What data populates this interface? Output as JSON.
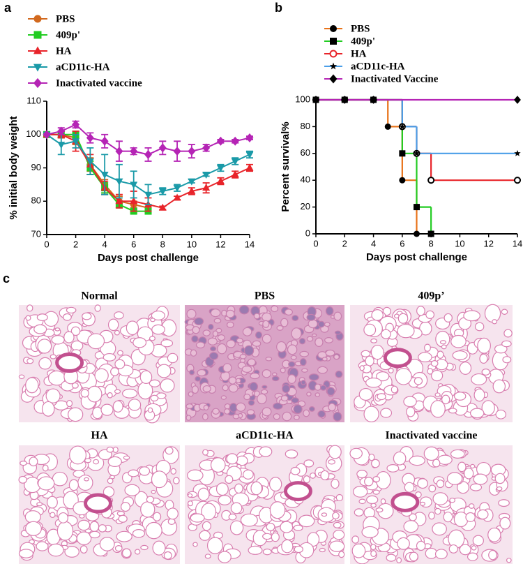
{
  "chart_data": [
    {
      "panel_label": "a",
      "type": "line",
      "xlabel": "Days post challenge",
      "ylabel": "% initial body weight",
      "x": [
        0,
        1,
        2,
        3,
        4,
        5,
        6,
        7,
        8,
        9,
        10,
        11,
        12,
        13,
        14
      ],
      "xlim": [
        0,
        14
      ],
      "xticks": [
        0,
        2,
        4,
        6,
        8,
        10,
        12,
        14
      ],
      "ylim": [
        70,
        110
      ],
      "yticks": [
        70,
        80,
        90,
        100,
        110
      ],
      "series": [
        {
          "name": "PBS",
          "color": "#d2691e",
          "marker": "circle",
          "values": [
            100,
            100,
            99,
            91,
            85,
            80,
            79,
            78,
            null,
            null,
            null,
            null,
            null,
            null,
            null
          ],
          "errors": [
            0,
            1,
            2,
            2,
            1.5,
            1.5,
            1,
            1,
            null,
            null,
            null,
            null,
            null,
            null,
            null
          ]
        },
        {
          "name": "409p'",
          "color": "#22cc22",
          "marker": "square",
          "values": [
            100,
            100,
            100,
            90,
            84,
            79,
            77,
            77,
            null,
            null,
            null,
            null,
            null,
            null,
            null
          ],
          "errors": [
            0,
            1,
            1,
            2,
            1.5,
            1,
            0.5,
            0.5,
            null,
            null,
            null,
            null,
            null,
            null,
            null
          ]
        },
        {
          "name": "HA",
          "color": "#e8242a",
          "marker": "triangle",
          "values": [
            100,
            100,
            98,
            91,
            84,
            80,
            80,
            79,
            78,
            81,
            83,
            84,
            86,
            88,
            90
          ],
          "errors": [
            0,
            1,
            3,
            3,
            2,
            2,
            3,
            2,
            0.5,
            0.5,
            1,
            1.5,
            1,
            1,
            1
          ]
        },
        {
          "name": "aCD11c-HA",
          "color": "#1a9aa8",
          "marker": "triangle-down",
          "values": [
            100,
            97,
            98,
            92,
            88,
            86,
            85,
            82,
            83,
            84,
            86,
            88,
            90,
            92,
            94
          ],
          "errors": [
            0,
            3,
            2,
            4,
            6,
            5,
            4,
            3,
            1,
            1,
            0.5,
            0.5,
            1,
            1,
            1
          ]
        },
        {
          "name": "Inactivated vaccine",
          "color": "#b524b5",
          "marker": "diamond",
          "values": [
            100,
            101,
            103,
            99,
            98,
            95,
            95,
            94,
            96,
            95,
            95,
            96,
            98,
            98,
            99
          ],
          "errors": [
            0,
            1,
            1,
            1.5,
            2,
            3,
            1,
            2,
            2,
            3,
            2,
            1,
            0.5,
            0.5,
            0.5
          ]
        }
      ]
    },
    {
      "panel_label": "b",
      "type": "step",
      "xlabel": "Days post challenge",
      "ylabel": "Percent survival%",
      "xlim": [
        0,
        14
      ],
      "xticks": [
        0,
        2,
        4,
        6,
        8,
        10,
        12,
        14
      ],
      "ylim": [
        0,
        100
      ],
      "yticks": [
        0,
        20,
        40,
        60,
        80,
        100
      ],
      "series": [
        {
          "name": "PBS",
          "color": "#e8731a",
          "marker": "circle",
          "x": [
            0,
            2,
            4,
            5,
            6,
            7
          ],
          "values": [
            100,
            100,
            100,
            80,
            40,
            0
          ]
        },
        {
          "name": "409p'",
          "color": "#22cc22",
          "marker": "square",
          "x": [
            0,
            2,
            4,
            6,
            7,
            8
          ],
          "values": [
            100,
            100,
            100,
            60,
            20,
            0
          ]
        },
        {
          "name": "HA",
          "color": "#e8242a",
          "marker": "circle-open",
          "x": [
            0,
            2,
            4,
            6,
            7,
            8,
            14
          ],
          "values": [
            100,
            100,
            100,
            80,
            60,
            40,
            40
          ]
        },
        {
          "name": "aCD11c-HA",
          "color": "#4a9ee8",
          "marker": "star",
          "x": [
            0,
            2,
            4,
            6,
            7,
            14
          ],
          "values": [
            100,
            100,
            100,
            80,
            60,
            60
          ]
        },
        {
          "name": "Inactivated Vaccine",
          "color": "#b524b5",
          "marker": "diamond",
          "x": [
            0,
            2,
            4,
            14
          ],
          "values": [
            100,
            100,
            100,
            100
          ]
        }
      ]
    }
  ],
  "histology": {
    "panel_label": "c",
    "panels": [
      {
        "title": "Normal"
      },
      {
        "title": "PBS"
      },
      {
        "title": "409p’"
      },
      {
        "title": "HA"
      },
      {
        "title": "aCD11c-HA"
      },
      {
        "title": "Inactivated vaccine"
      }
    ]
  }
}
